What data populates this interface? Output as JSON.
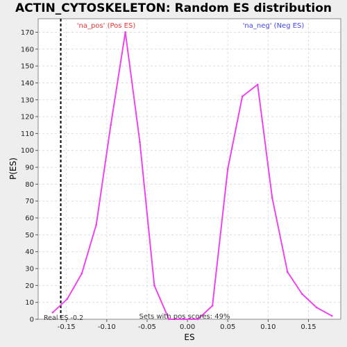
{
  "chart_data": {
    "type": "line",
    "title": "ACTIN_CYTOSKELETON: Random ES distribution",
    "xlabel": "ES",
    "ylabel": "P(ES)",
    "xlim": [
      -0.185,
      0.19
    ],
    "ylim": [
      0,
      178
    ],
    "xticks": [
      -0.15,
      -0.1,
      -0.05,
      0.0,
      0.05,
      0.1,
      0.15
    ],
    "xtick_labels": [
      "-0.15",
      "-0.10",
      "-0.05",
      "0.00",
      "0.05",
      "0.10",
      "0.15"
    ],
    "yticks": [
      0,
      10,
      20,
      30,
      40,
      50,
      60,
      70,
      80,
      90,
      100,
      110,
      120,
      130,
      140,
      150,
      160,
      170
    ],
    "grid": true,
    "series": [
      {
        "color": "#ee44ee",
        "x": [
          -0.167,
          -0.149,
          -0.131,
          -0.113,
          -0.095,
          -0.077,
          -0.059,
          -0.041,
          -0.023,
          -0.005,
          0.013,
          0.031,
          0.05,
          0.068,
          0.087,
          0.105,
          0.124,
          0.142,
          0.16,
          0.179
        ],
        "y": [
          4,
          12,
          27,
          56,
          115,
          170,
          105,
          20,
          0,
          0,
          0,
          8,
          89,
          132,
          139,
          72,
          28,
          15,
          7,
          2
        ]
      }
    ],
    "annotations": {
      "pos_label": "'na_pos' (Pos ES)",
      "neg_label": "'na_neg' (Neg ES)",
      "real_es_label": "Real ES -0.2",
      "real_es_value": -0.157,
      "sets_label": "Sets with pos scores: 49%"
    },
    "colors": {
      "line": "#ee44ee",
      "pos_label": "#ee3333",
      "neg_label": "#4444ee",
      "grid": "#dddddd",
      "real_es_line": "#000000"
    }
  }
}
